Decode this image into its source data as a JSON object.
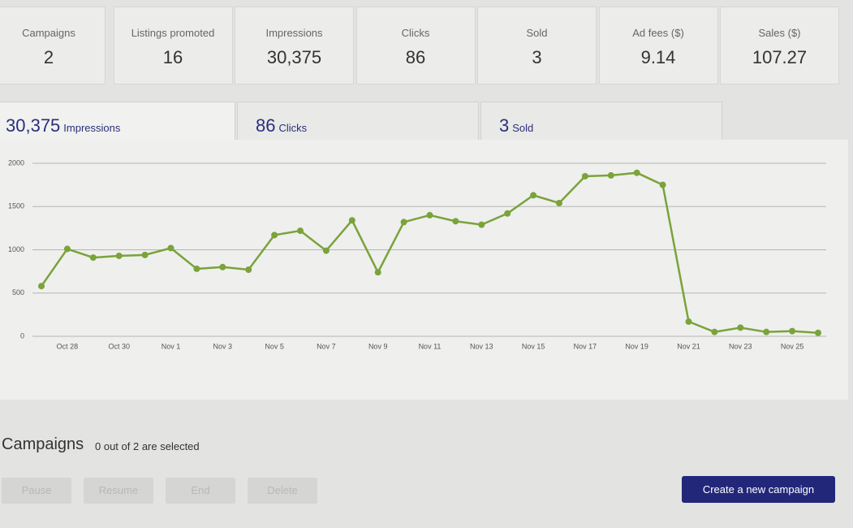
{
  "stats": [
    {
      "label": "Campaigns",
      "value": "2"
    },
    {
      "label": "Listings promoted",
      "value": "16"
    },
    {
      "label": "Impressions",
      "value": "30,375"
    },
    {
      "label": "Clicks",
      "value": "86"
    },
    {
      "label": "Sold",
      "value": "3"
    },
    {
      "label": "Ad fees ($)",
      "value": "9.14"
    },
    {
      "label": "Sales ($)",
      "value": "107.27"
    }
  ],
  "tabs": [
    {
      "value": "30,375",
      "label": "Impressions"
    },
    {
      "value": "86",
      "label": "Clicks"
    },
    {
      "value": "3",
      "label": "Sold"
    }
  ],
  "chart_data": {
    "type": "line",
    "color": "#7aa33a",
    "grid": true,
    "categories": [
      null,
      "Oct 28",
      null,
      "Oct 30",
      null,
      "Nov 1",
      null,
      "Nov 3",
      null,
      "Nov 5",
      null,
      "Nov 7",
      null,
      "Nov 9",
      null,
      "Nov 11",
      null,
      "Nov 13",
      null,
      "Nov 15",
      null,
      "Nov 17",
      null,
      "Nov 19",
      null,
      "Nov 21",
      null,
      "Nov 23",
      null,
      "Nov 25",
      null
    ],
    "values": [
      580,
      1010,
      910,
      930,
      940,
      1020,
      780,
      800,
      770,
      1170,
      1220,
      990,
      1340,
      740,
      1320,
      1400,
      1330,
      1290,
      1420,
      1630,
      1540,
      1850,
      1860,
      1890,
      1750,
      170,
      50,
      100,
      50,
      60,
      40
    ],
    "ylim": [
      0,
      2000
    ],
    "yticks": [
      0,
      500,
      1000,
      1500,
      2000
    ]
  },
  "campaigns": {
    "title": "Campaigns",
    "selection": "0 out of 2 are selected",
    "buttons": [
      "Pause",
      "Resume",
      "End",
      "Delete"
    ],
    "create": "Create a new campaign"
  }
}
